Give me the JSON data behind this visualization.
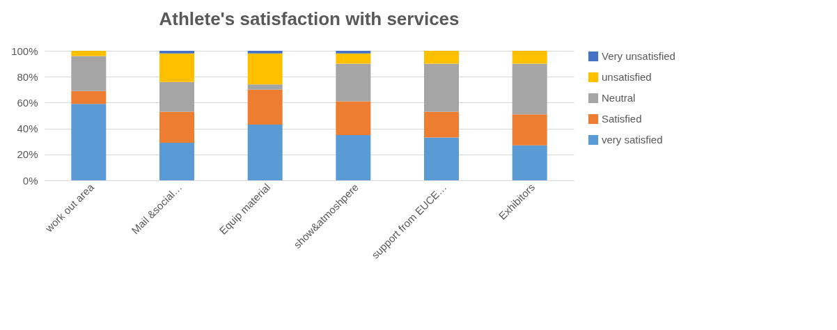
{
  "chart_data": {
    "type": "bar",
    "title": "Athlete's satisfaction with services",
    "stacked": true,
    "categories": [
      "work out  area",
      "Mail &social…",
      "Equip material",
      "show&atmoshpere",
      "support from EUCE…",
      "Exhibitors"
    ],
    "series": [
      {
        "name": "very satisfied",
        "color": "#5b9bd5",
        "values": [
          59,
          29,
          43,
          35,
          33,
          27
        ]
      },
      {
        "name": "Satisfied",
        "color": "#ed7d31",
        "values": [
          10,
          24,
          27,
          26,
          20,
          24
        ]
      },
      {
        "name": "Neutral",
        "color": "#a5a5a5",
        "values": [
          27,
          23,
          4,
          29,
          37,
          39
        ]
      },
      {
        "name": "unsatisfied",
        "color": "#ffc000",
        "values": [
          4,
          22,
          24,
          8,
          10,
          10
        ]
      },
      {
        "name": "Very unsatisfied",
        "color": "#4472c4",
        "values": [
          null,
          2,
          2,
          2,
          null,
          null
        ]
      }
    ],
    "ylim": [
      0,
      100
    ],
    "yticks": [
      {
        "value": 0,
        "label": "0%"
      },
      {
        "value": 20,
        "label": "20%"
      },
      {
        "value": 40,
        "label": "40%"
      },
      {
        "value": 60,
        "label": "60%"
      },
      {
        "value": 80,
        "label": "80%"
      },
      {
        "value": 100,
        "label": "100%"
      }
    ],
    "grid": "y",
    "legend": "right"
  }
}
